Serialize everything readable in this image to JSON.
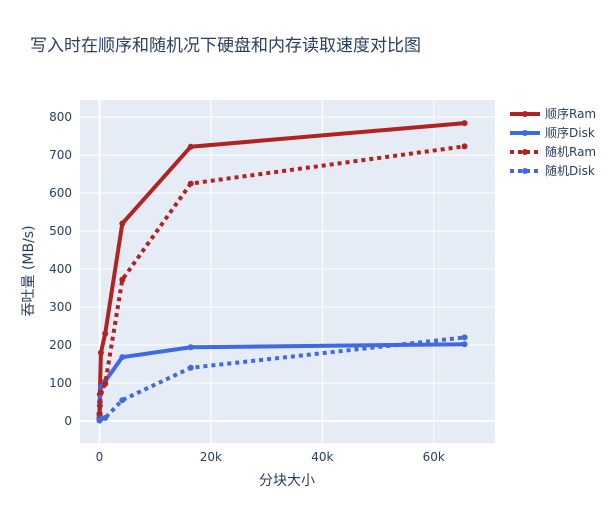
{
  "chart_data": {
    "type": "line",
    "title": "写入时在顺序和随机况下硬盘和内存读取速度对比图",
    "xlabel": "分块大小",
    "ylabel": "吞吐量 (MB/s)",
    "xlim": [
      -3500,
      71000
    ],
    "ylim": [
      -58,
      845
    ],
    "x_ticks": [
      0,
      20000,
      40000,
      60000
    ],
    "x_tick_labels": [
      "0",
      "20k",
      "40k",
      "60k"
    ],
    "y_ticks": [
      0,
      100,
      200,
      300,
      400,
      500,
      600,
      700,
      800
    ],
    "y_tick_labels": [
      "0",
      "100",
      "200",
      "300",
      "400",
      "500",
      "600",
      "700",
      "800"
    ],
    "grid": true,
    "legend_position": "top-right",
    "series": [
      {
        "name": "顺序Ram",
        "color": "#b22222",
        "dash": "solid",
        "x": [
          4,
          16,
          64,
          256,
          1024,
          4096,
          16384,
          65536
        ],
        "y": [
          8,
          20,
          70,
          180,
          230,
          520,
          722,
          784
        ]
      },
      {
        "name": "顺序Disk",
        "color": "#4169e1",
        "dash": "solid",
        "x": [
          4,
          16,
          64,
          256,
          1024,
          4096,
          16384,
          65536
        ],
        "y": [
          5,
          15,
          50,
          90,
          105,
          168,
          194,
          202
        ]
      },
      {
        "name": "随机Ram",
        "color": "#b22222",
        "dash": "dot",
        "x": [
          4,
          16,
          64,
          256,
          1024,
          4096,
          16384,
          65536
        ],
        "y": [
          5,
          18,
          40,
          75,
          98,
          372,
          625,
          723
        ]
      },
      {
        "name": "随机Disk",
        "color": "#4169e1",
        "dash": "dot",
        "x": [
          4,
          16,
          64,
          256,
          1024,
          4096,
          16384,
          65536
        ],
        "y": [
          1,
          2,
          4,
          6,
          8,
          55,
          140,
          220
        ]
      }
    ]
  }
}
